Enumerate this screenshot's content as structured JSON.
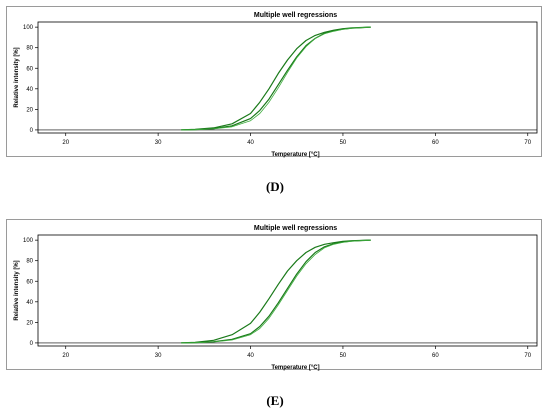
{
  "colors": {
    "curve": "#1a7a1a",
    "curve_light": "#3fae3f",
    "axis": "#000000",
    "frame": "#9a9a9a"
  },
  "chart_data": [
    {
      "type": "line",
      "title": "Multiple well regressions",
      "xlabel": "Temperature [°C]",
      "ylabel": "Relative intensity [%]",
      "xlim": [
        17,
        71
      ],
      "ylim": [
        -3,
        105
      ],
      "xticks": [
        20,
        30,
        40,
        50,
        60,
        70
      ],
      "yticks": [
        0,
        20,
        40,
        60,
        80,
        100
      ],
      "series": [
        {
          "x": [
            32.5,
            34,
            36,
            38,
            40,
            41,
            42,
            43,
            44,
            45,
            46,
            47,
            48,
            49,
            50,
            51,
            53
          ],
          "y": [
            0,
            0.5,
            2,
            6,
            16,
            27,
            40,
            55,
            68,
            79,
            87,
            92,
            95,
            97,
            98.5,
            99.3,
            100
          ]
        },
        {
          "x": [
            32.5,
            34,
            36,
            38,
            40,
            41,
            42,
            43,
            44,
            45,
            46,
            47,
            48,
            49,
            50,
            51,
            53
          ],
          "y": [
            0,
            0.3,
            1.3,
            4,
            11,
            19,
            30,
            44,
            58,
            71,
            82,
            89,
            94,
            96.5,
            98,
            99,
            100
          ]
        },
        {
          "x": [
            32.5,
            34,
            36,
            38,
            40,
            41,
            42,
            43,
            44,
            45,
            46,
            47,
            48,
            49,
            50,
            51,
            53
          ],
          "y": [
            0,
            0.2,
            1,
            3,
            9,
            16,
            27,
            41,
            56,
            70,
            81,
            89,
            93.5,
            96,
            97.8,
            99,
            100
          ]
        }
      ]
    },
    {
      "type": "line",
      "title": "Multiple well regressions",
      "xlabel": "Temperature [°C]",
      "ylabel": "Relative intensity [%]",
      "xlim": [
        17,
        71
      ],
      "ylim": [
        -3,
        105
      ],
      "xticks": [
        20,
        30,
        40,
        50,
        60,
        70
      ],
      "yticks": [
        0,
        20,
        40,
        60,
        80,
        100
      ],
      "series": [
        {
          "x": [
            32.5,
            34,
            36,
            38,
            40,
            41,
            42,
            43,
            44,
            45,
            46,
            47,
            48,
            49,
            50,
            51,
            53
          ],
          "y": [
            0,
            0.6,
            2.5,
            8,
            19,
            30,
            43,
            57,
            70,
            80,
            88,
            93,
            96,
            97.5,
            98.8,
            99.5,
            100
          ]
        },
        {
          "x": [
            32.5,
            34,
            36,
            38,
            40,
            41,
            42,
            43,
            44,
            45,
            46,
            47,
            48,
            49,
            50,
            51,
            53
          ],
          "y": [
            0,
            0.3,
            1.2,
            3.5,
            9,
            16,
            26,
            39,
            53,
            67,
            79,
            88,
            93.5,
            96.5,
            98.2,
            99.2,
            100
          ]
        },
        {
          "x": [
            32.5,
            34,
            36,
            38,
            40,
            41,
            42,
            43,
            44,
            45,
            46,
            47,
            48,
            49,
            50,
            51,
            53
          ],
          "y": [
            0,
            0.2,
            0.9,
            2.8,
            8,
            14,
            24,
            37,
            51,
            65,
            77,
            86,
            92.5,
            96,
            97.8,
            99,
            100
          ]
        }
      ]
    }
  ],
  "captions": [
    "(D)",
    "(E)"
  ]
}
